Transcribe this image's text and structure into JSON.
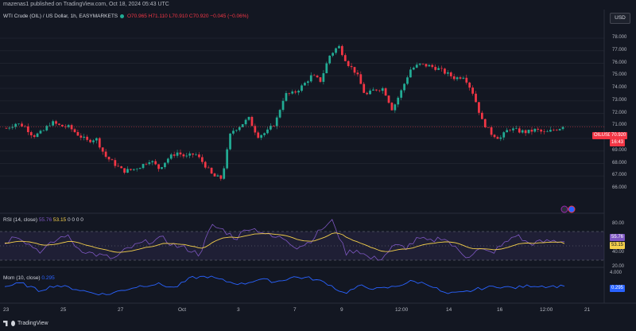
{
  "header": {
    "published": "mazenas1 published on TradingView.com, Oct 18, 2024 05:43 UTC"
  },
  "legend": {
    "symbol": "WTI Crude (OIL) / US Dollar, 1h, EASYMARKETS",
    "open": "O70.965",
    "high": "H71.110",
    "low": "L70.910",
    "close": "C70.920",
    "change": "−0.045 (−0.06%)"
  },
  "currency": "USD",
  "price_axis": {
    "ticks": [
      "78.000",
      "77.000",
      "76.000",
      "75.000",
      "74.000",
      "73.000",
      "72.000",
      "71.000",
      "70.000",
      "69.000",
      "68.000",
      "67.000",
      "66.000"
    ],
    "current_tag": {
      "symbol": "OILUSD",
      "price": "70.920",
      "countdown": "16:43"
    }
  },
  "rsi": {
    "label": "RSI (14, close)",
    "rsi_value": "55.76",
    "ma_value": "53.15",
    "zeros": "0 0 0 0",
    "ticks": [
      "80.00",
      "60.00",
      "40.00",
      "20.00"
    ]
  },
  "mom": {
    "label": "Mom (10, close)",
    "value": "0.295",
    "ticks": [
      "4.000"
    ]
  },
  "time_axis": [
    "23",
    "25",
    "27",
    "Oct",
    "3",
    "7",
    "9",
    "12:00",
    "14",
    "16",
    "12:00",
    "21"
  ],
  "footer": {
    "brand": "TradingView"
  },
  "colors": {
    "up": "#22ab94",
    "down": "#f23645",
    "rsi_line": "#7e57c2",
    "rsi_ma": "#f5d04b",
    "mom": "#2962ff",
    "bg": "#131722"
  },
  "chart_data": [
    {
      "type": "candlestick",
      "title": "WTI Crude (OIL) / US Dollar, 1h, EASYMARKETS",
      "x_ticks": [
        "23",
        "25",
        "27",
        "Oct",
        "3",
        "7",
        "9",
        "12:00",
        "14",
        "16",
        "12:00",
        "21"
      ],
      "ylim": [
        65.5,
        78.5
      ],
      "close_path": [
        70.8,
        71.2,
        71.0,
        70.2,
        70.5,
        71.3,
        71.0,
        70.9,
        70.3,
        69.8,
        70.0,
        68.6,
        68.0,
        67.4,
        67.5,
        67.8,
        68.3,
        67.6,
        68.4,
        68.9,
        68.5,
        68.8,
        68.0,
        67.0,
        66.8,
        70.5,
        71.0,
        71.6,
        70.2,
        70.5,
        71.3,
        73.5,
        73.6,
        74.2,
        75.0,
        74.6,
        76.6,
        77.4,
        76.0,
        75.2,
        73.4,
        73.9,
        74.0,
        72.3,
        73.8,
        75.5,
        75.9,
        75.8,
        75.6,
        75.2,
        74.8,
        75.0,
        73.6,
        71.4,
        70.4,
        70.0,
        70.8,
        70.6,
        70.5,
        70.7,
        70.4,
        70.7,
        70.92
      ],
      "last": 70.92
    },
    {
      "type": "line",
      "title": "RSI (14, close)",
      "ylim": [
        0,
        100
      ],
      "levels": [
        70,
        50,
        30
      ],
      "last": 55.76,
      "ma_last": 53.15,
      "series": [
        54,
        66,
        52,
        42,
        55,
        66,
        47,
        40,
        36,
        32,
        45,
        52,
        57,
        60,
        50,
        46,
        38,
        78,
        72,
        60,
        76,
        71,
        62,
        61,
        48,
        55,
        73,
        85,
        40,
        45,
        32,
        33,
        50,
        48,
        60,
        56,
        63,
        47,
        35,
        45,
        40,
        52,
        66,
        53,
        55,
        56.95,
        55.76
      ]
    },
    {
      "type": "line",
      "title": "Mom (10, close)",
      "last": 0.295,
      "series": [
        0.2,
        1.2,
        -1.0,
        0.6,
        -0.3,
        -1.5,
        -2.2,
        -0.8,
        0.4,
        1.0,
        -0.2,
        2.8,
        3.2,
        1.8,
        0.9,
        2.4,
        1.6,
        3.0,
        2.7,
        1.2,
        -1.8,
        0.4,
        -0.6,
        0.2,
        1.8,
        0.9,
        -2.0,
        -1.6,
        -0.4,
        0.3,
        -0.2,
        0.5,
        0.3,
        0.295
      ]
    }
  ]
}
